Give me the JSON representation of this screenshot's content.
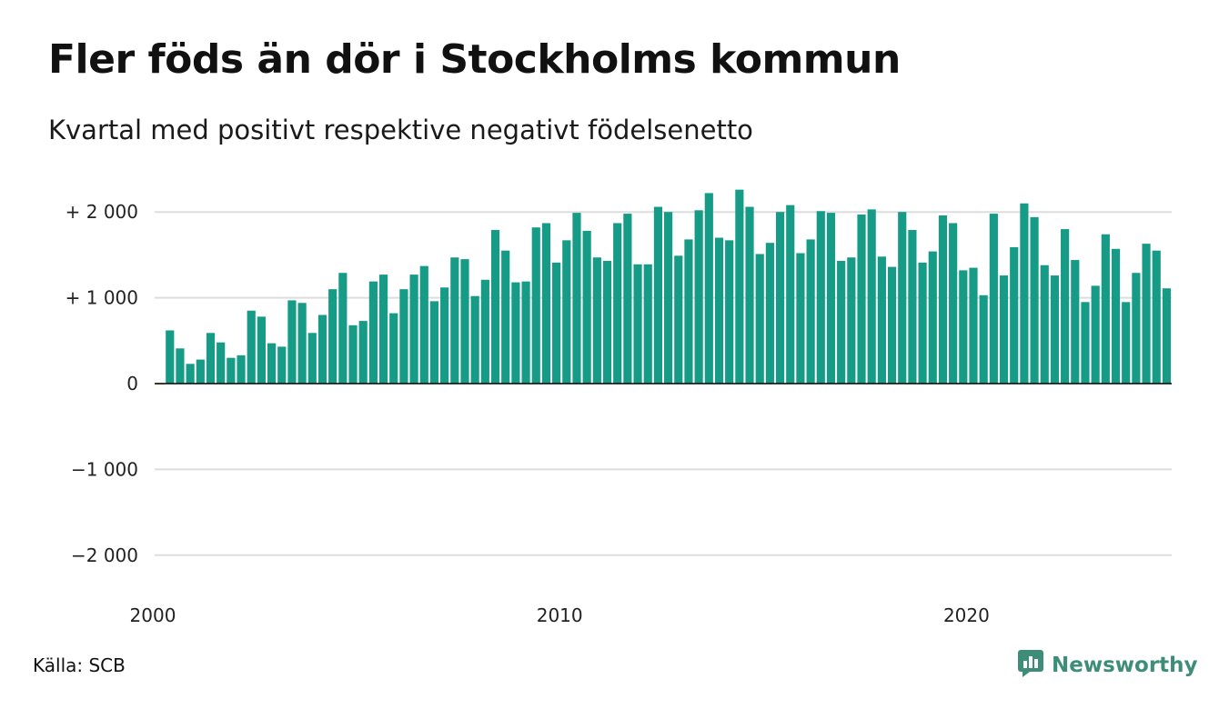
{
  "header": {
    "title": "Fler föds än dör i Stockholms kommun",
    "subtitle": "Kvartal med positivt respektive negativt födelsenetto"
  },
  "footer": {
    "source": "Källa: SCB",
    "brand": "Newsworthy",
    "brand_icon": "newsworthy-logo-icon"
  },
  "colors": {
    "positive": "#169b86",
    "negative": "#e8a020",
    "grid": "#dddddd",
    "zero_line": "#000000",
    "brand": "#3e8d79"
  },
  "chart_data": {
    "type": "bar",
    "title": "Fler föds än dör i Stockholms kommun",
    "subtitle": "Kvartal med positivt respektive negativt födelsenetto",
    "xlabel": "",
    "ylabel": "",
    "ylim": [
      -2300,
      2300
    ],
    "yticks": [
      {
        "value": 2000,
        "label": "+ 2 000"
      },
      {
        "value": 1000,
        "label": "+ 1 000"
      },
      {
        "value": 0,
        "label": "0"
      },
      {
        "value": -1000,
        "label": "−1 000"
      },
      {
        "value": -2000,
        "label": "−2 000"
      }
    ],
    "xticks": [
      "2000",
      "2010",
      "2020"
    ],
    "grid": true,
    "start": "2000 Q1",
    "values": [
      -10,
      620,
      410,
      230,
      280,
      590,
      480,
      300,
      330,
      850,
      780,
      470,
      430,
      970,
      940,
      590,
      800,
      1100,
      1290,
      680,
      730,
      1190,
      1270,
      820,
      1100,
      1270,
      1370,
      960,
      1120,
      1470,
      1450,
      1020,
      1210,
      1790,
      1550,
      1180,
      1190,
      1820,
      1870,
      1410,
      1670,
      1990,
      1780,
      1470,
      1430,
      1870,
      1980,
      1390,
      1390,
      2060,
      2000,
      1490,
      1680,
      2020,
      2220,
      1700,
      1670,
      2260,
      2060,
      1510,
      1640,
      2000,
      2080,
      1520,
      1680,
      2010,
      1990,
      1430,
      1470,
      1970,
      2030,
      1480,
      1360,
      2000,
      1790,
      1410,
      1540,
      1960,
      1870,
      1320,
      1350,
      1030,
      1980,
      1260,
      1590,
      2100,
      1940,
      1380,
      1260,
      1800,
      1440,
      950,
      1140,
      1740,
      1570,
      950,
      1290,
      1630,
      1550,
      1110
    ]
  }
}
